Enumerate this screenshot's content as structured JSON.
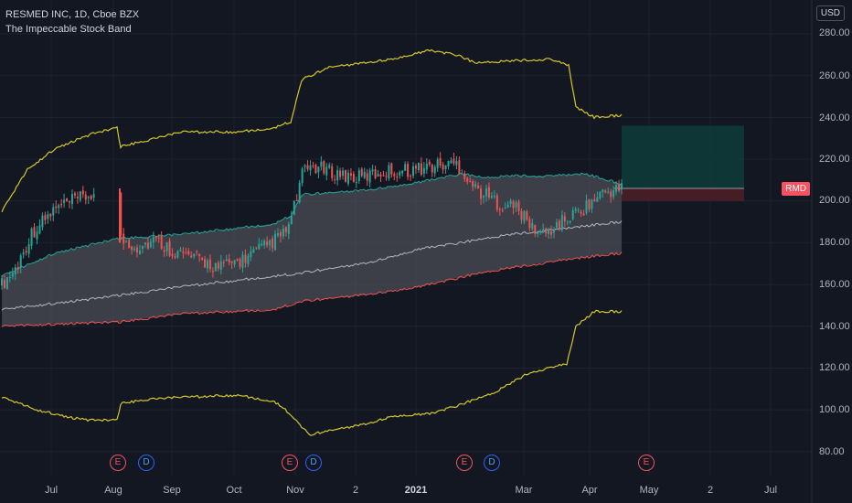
{
  "header": {
    "symbol_line": "RESMED INC, 1D, Cboe BZX",
    "indicator_line": "The Impeccable Stock Band"
  },
  "currency_button": "USD",
  "price_badge": "RMD",
  "y_axis_labels": [
    "280.00",
    "260.00",
    "240.00",
    "220.00",
    "200.00",
    "180.00",
    "160.00",
    "140.00",
    "120.00",
    "100.00",
    "80.00"
  ],
  "x_axis_labels": [
    "Jul",
    "Aug",
    "Sep",
    "Oct",
    "Nov",
    "2",
    "2021",
    "Mar",
    "Apr",
    "May",
    "2",
    "Jul"
  ],
  "events": [
    "E",
    "D",
    "E",
    "D",
    "E",
    "D",
    "E"
  ],
  "colors": {
    "background": "#131722",
    "band_fill": "#4b4d55",
    "upper_band": "#26a69a",
    "lower_band": "#ef5350",
    "outer_band": "#d4c72a",
    "midline": "#b2b5be",
    "up_candle": "#26a69a",
    "down_candle": "#ef5350",
    "target_zone": "#0f3a3a",
    "stop_zone": "#4a1f25"
  },
  "chart_data": {
    "type": "candlestick",
    "ylim": [
      72,
      290
    ],
    "price_checkpoints": [
      {
        "x": "Jul",
        "y": 165
      },
      {
        "x": "Aug",
        "y": 202
      },
      {
        "x": "Sep",
        "y": 178
      },
      {
        "x": "Oct",
        "y": 170
      },
      {
        "x": "Nov",
        "y": 188
      },
      {
        "x": "Nov",
        "y": 216
      },
      {
        "x": "2021",
        "y": 215
      },
      {
        "x": "Mar",
        "y": 185
      },
      {
        "x": "Apr",
        "y": 205
      }
    ],
    "position": {
      "entry": 206,
      "target": 236,
      "stop": 200
    }
  }
}
